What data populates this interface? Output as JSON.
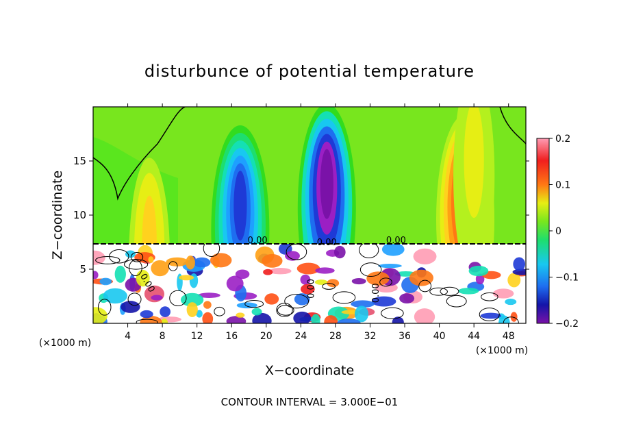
{
  "chart_data": {
    "type": "heatmap",
    "title": "disturbunce of potential temperature",
    "xlabel": "X−coordinate",
    "ylabel": "Z−coordinate",
    "x_unit_left": "(×1000 m)",
    "x_unit_right": "(×1000 m)",
    "footer": "CONTOUR INTERVAL = 3.000E−01",
    "xlim": [
      0,
      50
    ],
    "ylim": [
      0,
      20
    ],
    "x_ticks": [
      4,
      8,
      12,
      16,
      20,
      24,
      28,
      32,
      36,
      40,
      44,
      48
    ],
    "y_ticks": [
      5,
      10,
      15
    ],
    "colorbar": {
      "range": [
        -0.2,
        0.2
      ],
      "tick_values": [
        0.2,
        0.1,
        0,
        -0.1,
        -0.2
      ],
      "tick_labels": [
        "0.2",
        "0.1",
        "0",
        "−0.1",
        "−0.2"
      ],
      "colors": [
        "#7a12a8",
        "#9b1fc4",
        "#1414a8",
        "#1e3ad6",
        "#1e6ef0",
        "#1ea0ff",
        "#18c8f0",
        "#14e0b4",
        "#1ede6e",
        "#32dc1e",
        "#78e61e",
        "#b4f01e",
        "#e6ee14",
        "#ffd21e",
        "#ffa014",
        "#ff7814",
        "#ff5014",
        "#f01e1e",
        "#e6506e",
        "#ff9cb4"
      ]
    },
    "contour_labels": [
      "0.00",
      "0.00",
      "0.00",
      "0.00",
      "0.00",
      "0.00"
    ],
    "features": [
      {
        "kind": "anomaly",
        "x": 6.5,
        "z": 9,
        "value": 0.07
      },
      {
        "kind": "anomaly",
        "x": 17,
        "z": 12,
        "value": -0.13
      },
      {
        "kind": "anomaly",
        "x": 27,
        "z": 14,
        "value": -0.2
      },
      {
        "kind": "anomaly",
        "x": 43,
        "z": 13,
        "value": 0.15
      },
      {
        "kind": "anomaly",
        "x": 44,
        "z": 17,
        "value": 0.05
      },
      {
        "kind": "background",
        "value": 0.02
      }
    ]
  }
}
